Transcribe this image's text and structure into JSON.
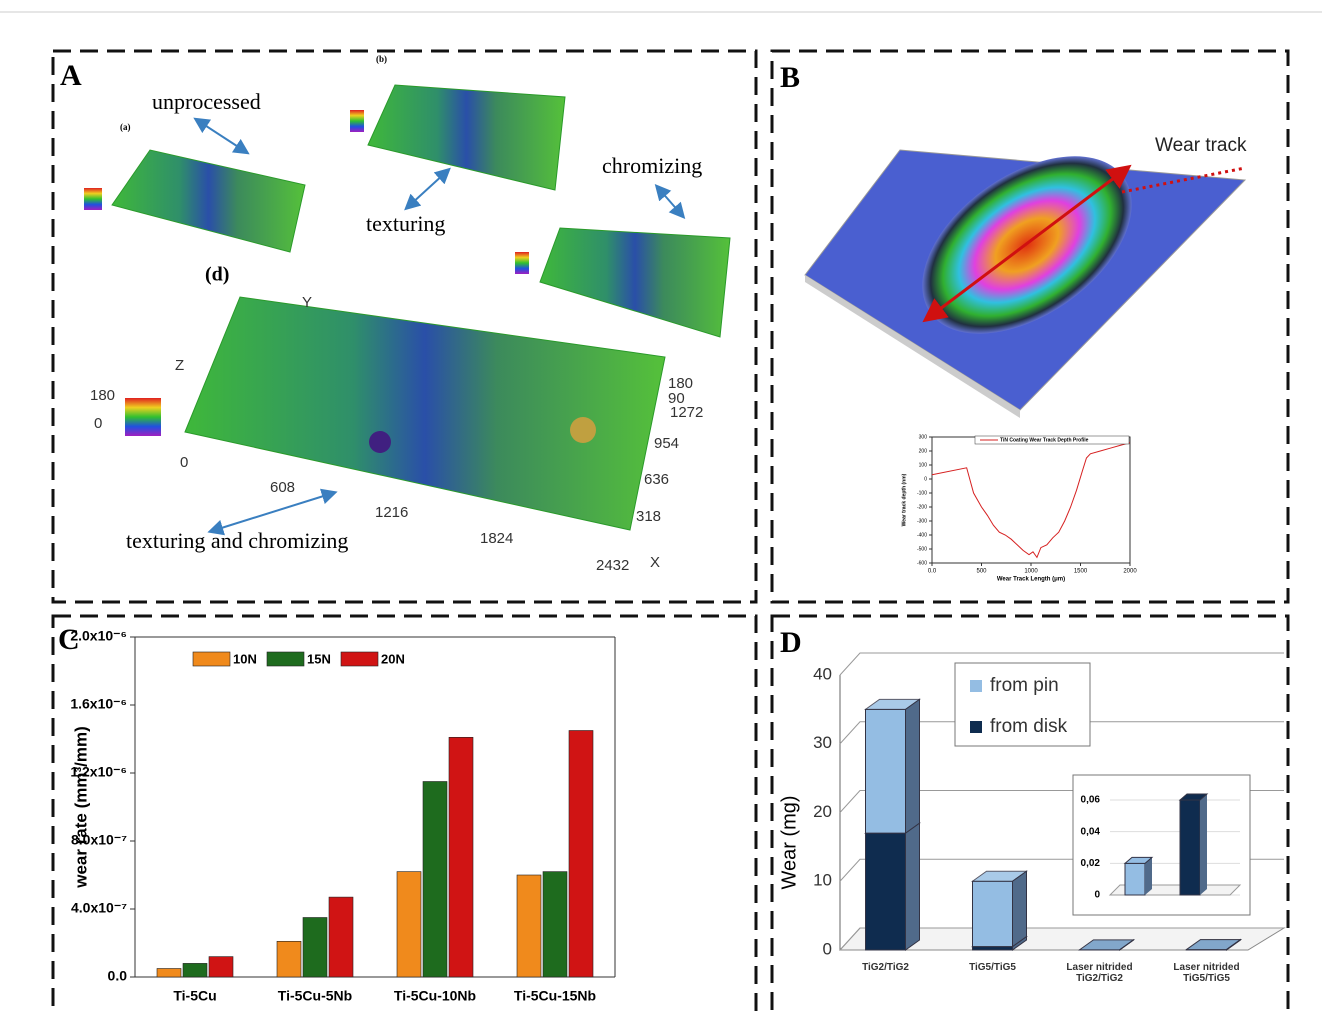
{
  "panels": {
    "A": {
      "letter": "A",
      "labels": [
        "unprocessed",
        "texturing",
        "chromizing",
        "texturing and chromizing"
      ],
      "subplots": [
        "(a)",
        "(b)",
        "(d)"
      ],
      "d_axes": {
        "z": "Z",
        "y": "Y",
        "x": "X",
        "x_ticks": [
          "0",
          "608",
          "1216",
          "1824",
          "2432"
        ],
        "y_ticks": [
          "318",
          "636",
          "954",
          "1272"
        ],
        "z_ticks": [
          "180",
          "90"
        ],
        "scale": [
          "180",
          "0"
        ]
      }
    },
    "B": {
      "letter": "B",
      "label": "Wear track"
    },
    "C": {
      "letter": "C"
    },
    "D": {
      "letter": "D"
    }
  },
  "chart_data": [
    {
      "type": "line",
      "x_label": "Wear Track Length (μm)",
      "y_label": "Wear track depth (nm)",
      "x": [
        0,
        350,
        420,
        500,
        560,
        620,
        680,
        740,
        800,
        860,
        920,
        980,
        1020,
        1060,
        1100,
        1160,
        1220,
        1280,
        1340,
        1400,
        1460,
        1520,
        1560,
        1600,
        1700,
        1800,
        1900,
        2000
      ],
      "series": [
        {
          "name": "TiN Coating Wear Track Depth Profile",
          "color": "#d62020",
          "values": [
            30,
            80,
            -100,
            -200,
            -260,
            -330,
            -380,
            -400,
            -430,
            -470,
            -510,
            -540,
            -520,
            -560,
            -490,
            -470,
            -420,
            -380,
            -300,
            -200,
            -80,
            60,
            150,
            180,
            200,
            220,
            240,
            260
          ]
        }
      ],
      "xlim": [
        0,
        2000
      ],
      "xticks": [
        {
          "value": 0,
          "label": "0.0"
        },
        500,
        1000,
        1500,
        2000
      ],
      "ylim": [
        -600,
        300
      ],
      "yticks": [
        300,
        200,
        100,
        0,
        -100,
        -200,
        -300,
        -400,
        -500,
        -600
      ]
    },
    {
      "type": "bar",
      "y_label": "wear rate (mm³/mm)",
      "categories": [
        "Ti-5Cu",
        "Ti-5Cu-5Nb",
        "Ti-5Cu-10Nb",
        "Ti-5Cu-15Nb"
      ],
      "series": [
        {
          "name": "10N",
          "color": "#f08a1c",
          "values": [
            5e-08,
            2.1e-07,
            6.2e-07,
            6e-07
          ]
        },
        {
          "name": "15N",
          "color": "#1e6b1e",
          "values": [
            8e-08,
            3.5e-07,
            1.15e-06,
            6.2e-07
          ]
        },
        {
          "name": "20N",
          "color": "#d01414",
          "values": [
            1.2e-07,
            4.7e-07,
            1.41e-06,
            1.45e-06
          ]
        }
      ],
      "ylim": [
        0,
        2e-06
      ],
      "yticks": [
        {
          "value": 0,
          "label": "0.0"
        },
        {
          "value": 4e-07,
          "label": "4.0x10⁻⁷"
        },
        {
          "value": 8e-07,
          "label": "8.0x10⁻⁷"
        },
        {
          "value": 1.2e-06,
          "label": "1.2x10⁻⁶"
        },
        {
          "value": 1.6e-06,
          "label": "1.6x10⁻⁶"
        },
        {
          "value": 2e-06,
          "label": "2.0x10⁻⁶"
        }
      ]
    },
    {
      "type": "stacked",
      "y_label": "Wear (mg)",
      "categories": [
        "TiG2/TiG2",
        "TiG5/TiG5",
        "Laser nitrided TiG2/TiG2",
        "Laser nitrided TiG5/TiG5"
      ],
      "series": [
        {
          "name": "from pin",
          "color": "#94bde3",
          "values": [
            18,
            9.5,
            0.02,
            0
          ]
        },
        {
          "name": "from disk",
          "color": "#0f2c4f",
          "values": [
            17,
            0.5,
            0,
            0.06
          ]
        }
      ],
      "ylim": [
        0,
        40
      ],
      "yticks": [
        0,
        10,
        20,
        30,
        40
      ],
      "inset": {
        "ylim": [
          0,
          0.06
        ],
        "yticks": [
          {
            "value": 0,
            "label": "0"
          },
          {
            "value": 0.02,
            "label": "0,02"
          },
          {
            "value": 0.04,
            "label": "0,04"
          },
          {
            "value": 0.06,
            "label": "0,06"
          }
        ]
      }
    }
  ]
}
